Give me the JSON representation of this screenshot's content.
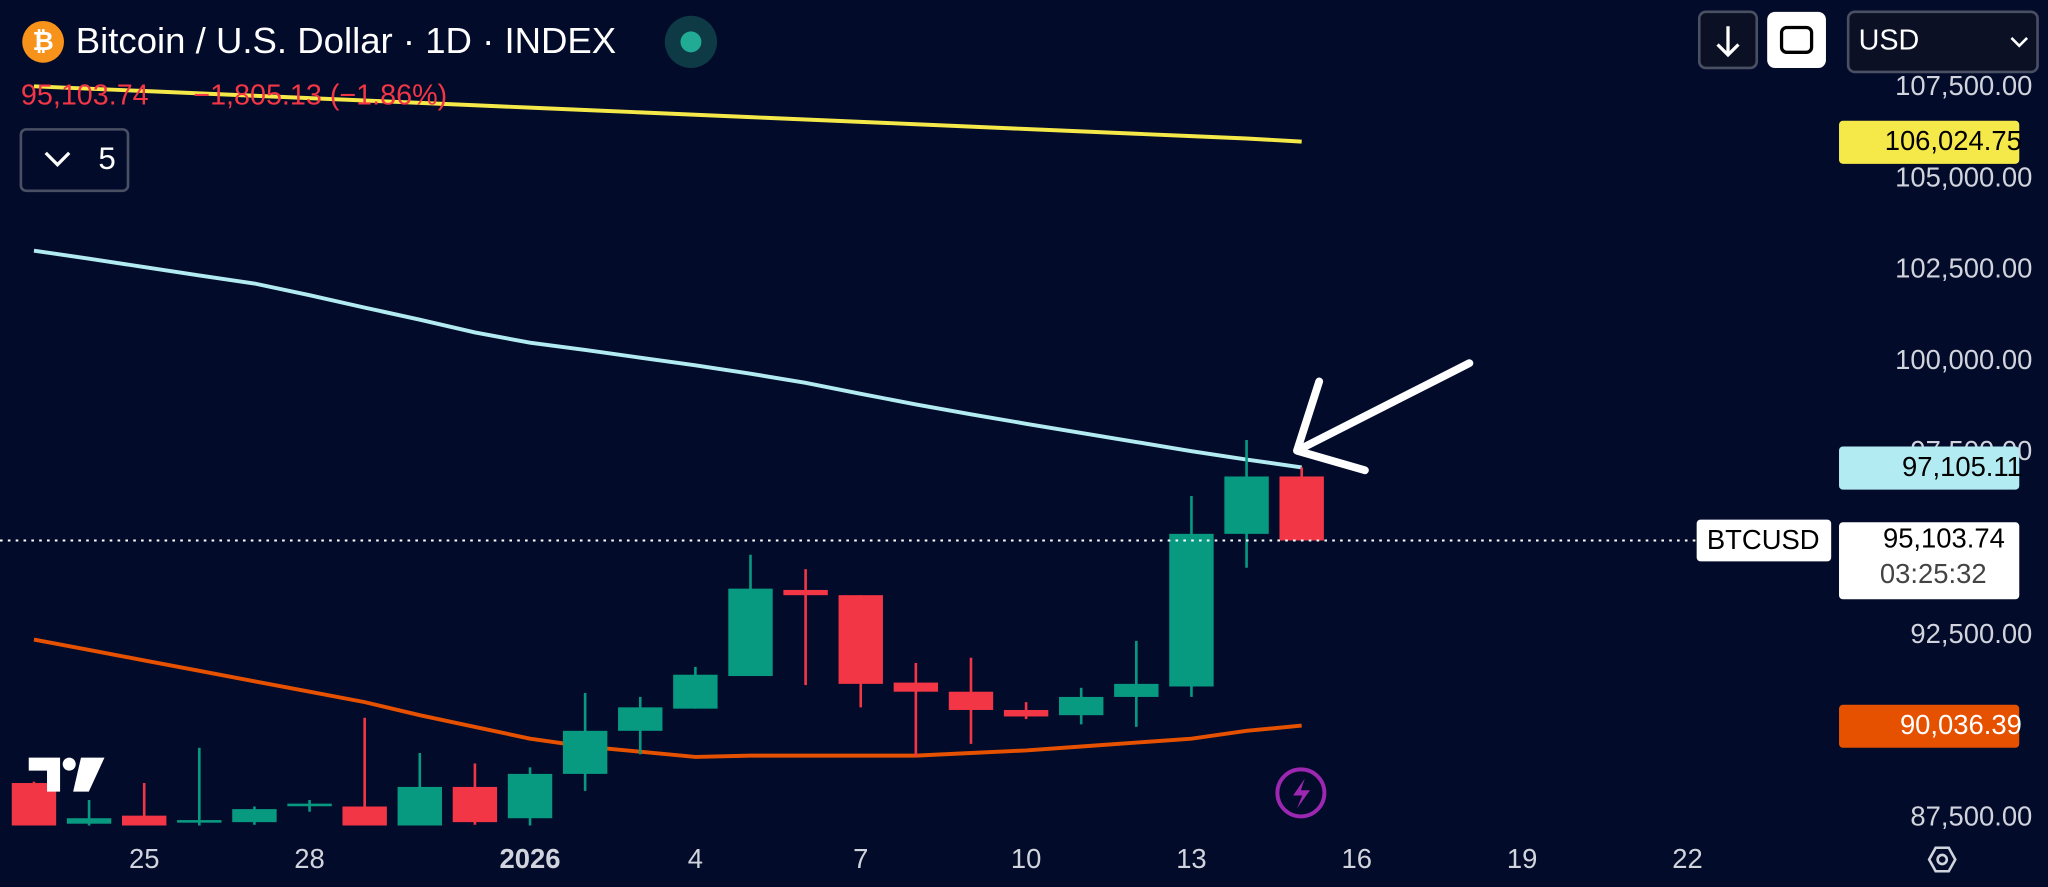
{
  "header": {
    "title": "Bitcoin / U.S. Dollar · 1D · INDEX",
    "last": "95,103.74",
    "change": "−1,805.13 (−1.86%)",
    "indicators": "5",
    "currency": "USD"
  },
  "chart_data": {
    "type": "candlestick",
    "categories": [
      null,
      null,
      "25",
      null,
      null,
      "28",
      null,
      null,
      null,
      "2026",
      null,
      null,
      "4",
      null,
      null,
      "7",
      null,
      null,
      "10",
      null,
      null,
      "13",
      null,
      null,
      "16",
      null,
      null,
      "19",
      null,
      null,
      "22"
    ],
    "open": [
      88464,
      87350,
      87571,
      87400,
      87393,
      87857,
      87821,
      87300,
      88357,
      87500,
      88714,
      89893,
      90500,
      91393,
      93750,
      93607,
      91214,
      90964,
      90464,
      90321,
      90821,
      91107,
      95286,
      96857,
      null,
      null,
      null,
      null,
      null,
      null,
      null
    ],
    "high": [
      88500,
      88000,
      88464,
      89429,
      87821,
      88000,
      90250,
      89286,
      89000,
      88893,
      90929,
      90821,
      91643,
      94714,
      94321,
      93607,
      91750,
      91893,
      90679,
      91071,
      92357,
      96321,
      97857,
      97107,
      null,
      null,
      null,
      null,
      null,
      null,
      null
    ],
    "low": [
      87200,
      87200,
      87200,
      87200,
      87321,
      87679,
      87200,
      87200,
      87321,
      87300,
      88250,
      89250,
      90500,
      91393,
      91143,
      90536,
      89179,
      89536,
      90214,
      90071,
      90000,
      90821,
      94357,
      95103.74,
      null,
      null,
      null,
      null,
      null,
      null,
      null
    ],
    "close": [
      87250,
      87500,
      87300,
      87450,
      87750,
      87900,
      87300,
      88357,
      87393,
      88714,
      89893,
      90536,
      91429,
      93786,
      93607,
      91179,
      90964,
      90464,
      90286,
      90821,
      91179,
      95286,
      96857,
      95103.74,
      null,
      null,
      null,
      null,
      null,
      null,
      null
    ],
    "up_color": "#089981",
    "down_color": "#f23645",
    "overlays": [
      {
        "color": "#f5e94a",
        "text_color": "#000000",
        "last_value_label": "106,024.75",
        "values": [
          107540,
          107475,
          107410,
          107345,
          107280,
          107215,
          107150,
          107085,
          107020,
          106955,
          106890,
          106825,
          106760,
          106695,
          106630,
          106565,
          106500,
          106435,
          106370,
          106305,
          106240,
          106175,
          106110,
          106024.75,
          null,
          null,
          null,
          null,
          null,
          null,
          null
        ]
      },
      {
        "color": "#b2ebf2",
        "text_color": "#000000",
        "last_value_label": "97,105.11",
        "values": [
          103040,
          102820,
          102590,
          102360,
          102140,
          101820,
          101480,
          101150,
          100800,
          100520,
          100320,
          100110,
          99900,
          99670,
          99420,
          99120,
          98830,
          98560,
          98300,
          98050,
          97800,
          97550,
          97320,
          97105.11,
          null,
          null,
          null,
          null,
          null,
          null,
          null
        ]
      },
      {
        "color": "#e65100",
        "text_color": "#ffffff",
        "last_value_label": "90,036.39",
        "values": [
          92393,
          92107,
          91821,
          91536,
          91250,
          90964,
          90679,
          90321,
          90000,
          89679,
          89464,
          89321,
          89179,
          89214,
          89214,
          89214,
          89214,
          89286,
          89357,
          89464,
          89571,
          89679,
          89893,
          90036.39,
          null,
          null,
          null,
          null,
          null,
          null,
          null
        ]
      }
    ],
    "price_line": {
      "value": 95103.74,
      "label": "95,103.74",
      "symbol": "BTCUSD",
      "countdown": "03:25:32"
    },
    "ylim": [
      87300,
      109900
    ],
    "yticks": [
      {
        "value": 87500,
        "label": "87,500.00"
      },
      {
        "value": 92500,
        "label": "92,500.00"
      },
      {
        "value": 97500,
        "label": "97,500.00"
      },
      {
        "value": 100000,
        "label": "100,000.00"
      },
      {
        "value": 102500,
        "label": "102,500.00"
      },
      {
        "value": 105000,
        "label": "105,000.00"
      },
      {
        "value": 107500,
        "label": "107,500.00"
      }
    ]
  }
}
